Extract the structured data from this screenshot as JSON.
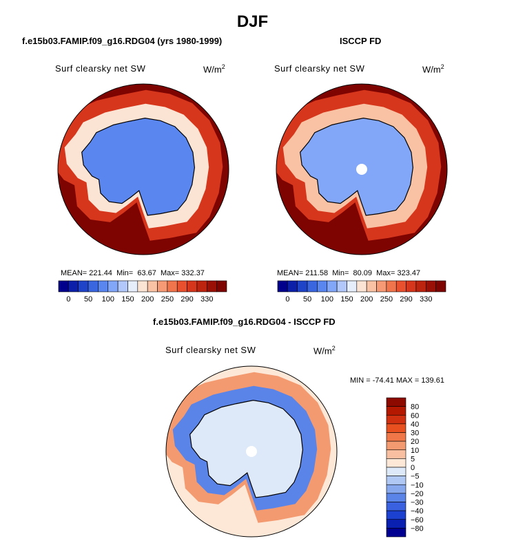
{
  "page_title": "DJF",
  "chart_data": [
    {
      "type": "heatmap",
      "projection": "south-polar-stereographic",
      "title": "f.e15b03.FAMIP.f09_g16.RDG04 (yrs 1980-1999)",
      "variable": "Surf clearsky net SW",
      "units_base": "W/m",
      "units_exp": "2",
      "stats": {
        "mean_label": "MEAN=",
        "mean": "221.44",
        "min_label": "Min=",
        "min": "63.67",
        "max_label": "Max=",
        "max": "332.37"
      },
      "colorbar": {
        "orientation": "horizontal",
        "tick_labels": [
          "0",
          "50",
          "100",
          "150",
          "200",
          "250",
          "290",
          "330"
        ],
        "colors": [
          "#00008c",
          "#0c1fa8",
          "#1f44c8",
          "#3a66e0",
          "#5a86f0",
          "#82a6f8",
          "#b2c8fa",
          "#e6eefc",
          "#fce4d4",
          "#f9c2a4",
          "#f59a74",
          "#f0744c",
          "#e8502e",
          "#d6361c",
          "#bc2410",
          "#9a1006",
          "#7e0402"
        ]
      },
      "regions": [
        {
          "name": "antarctic-interior",
          "approx_value": 95
        },
        {
          "name": "coastal-ring",
          "approx_value": 170
        },
        {
          "name": "sea-ice-zone",
          "approx_value": 260
        },
        {
          "name": "southern-ocean",
          "approx_value": 320
        }
      ]
    },
    {
      "type": "heatmap",
      "projection": "south-polar-stereographic",
      "title": "ISCCP FD",
      "variable": "Surf clearsky net SW",
      "units_base": "W/m",
      "units_exp": "2",
      "stats": {
        "mean_label": "MEAN=",
        "mean": "211.58",
        "min_label": "Min=",
        "min": "80.09",
        "max_label": "Max=",
        "max": "323.47"
      },
      "colorbar": {
        "orientation": "horizontal",
        "tick_labels": [
          "0",
          "50",
          "100",
          "150",
          "200",
          "250",
          "290",
          "330"
        ],
        "colors": [
          "#00008c",
          "#0c1fa8",
          "#1f44c8",
          "#3a66e0",
          "#5a86f0",
          "#82a6f8",
          "#b2c8fa",
          "#e6eefc",
          "#fce4d4",
          "#f9c2a4",
          "#f59a74",
          "#f0744c",
          "#e8502e",
          "#d6361c",
          "#bc2410",
          "#9a1006",
          "#7e0402"
        ]
      },
      "regions": [
        {
          "name": "antarctic-interior",
          "approx_value": 110
        },
        {
          "name": "coastal-ring",
          "approx_value": 175
        },
        {
          "name": "sea-ice-zone",
          "approx_value": 255
        },
        {
          "name": "southern-ocean",
          "approx_value": 315
        }
      ]
    },
    {
      "type": "heatmap",
      "projection": "south-polar-stereographic",
      "title": "f.e15b03.FAMIP.f09_g16.RDG04 - ISCCP FD",
      "variable": "Surf clearsky net SW",
      "units_base": "W/m",
      "units_exp": "2",
      "stats": {
        "text": "MIN = -74.41  MAX = 139.61"
      },
      "colorbar": {
        "orientation": "vertical",
        "tick_labels": [
          "80",
          "60",
          "40",
          "30",
          "20",
          "10",
          "5",
          "0",
          "−5",
          "−10",
          "−20",
          "−30",
          "−40",
          "−60",
          "−80"
        ],
        "colors": [
          "#8c0a00",
          "#b41800",
          "#d03010",
          "#e85020",
          "#f07848",
          "#f49a70",
          "#f8c0a0",
          "#fde8d8",
          "#dde8f8",
          "#b0c8f4",
          "#88a8ee",
          "#5a84e8",
          "#3a62e0",
          "#1c40d0",
          "#0a20b0",
          "#000090"
        ]
      },
      "regions": [
        {
          "name": "antarctic-interior",
          "approx_value": -7
        },
        {
          "name": "coastal-ring",
          "approx_value": -35
        },
        {
          "name": "sea-ice-zone",
          "approx_value": 25
        },
        {
          "name": "southern-ocean",
          "approx_value": 5
        }
      ]
    }
  ]
}
